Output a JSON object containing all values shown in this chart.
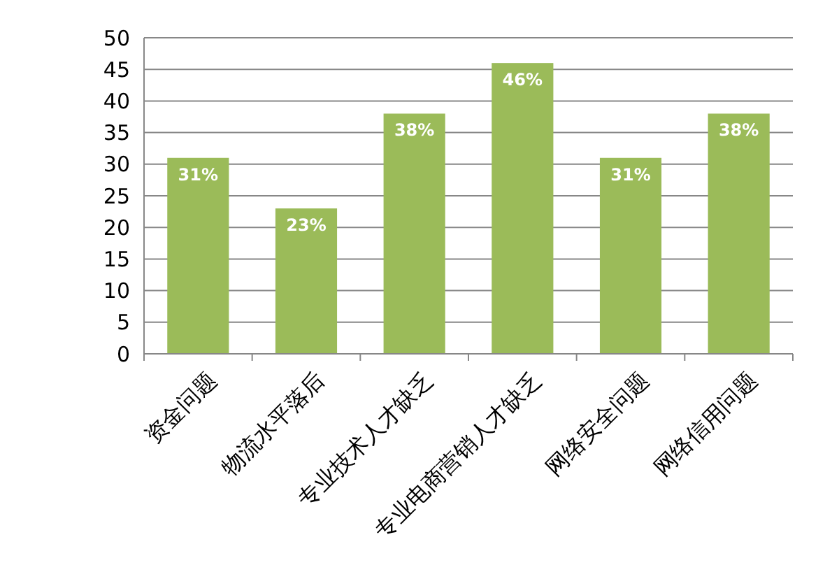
{
  "chart_data": {
    "type": "bar",
    "categories": [
      "资金问题",
      "物流水平落后",
      "专业技术人才缺乏",
      "专业电商营销人才缺乏",
      "网络安全问题",
      "网络信用问题"
    ],
    "values": [
      31,
      23,
      38,
      46,
      31,
      38
    ],
    "value_labels": [
      "31%",
      "23%",
      "38%",
      "46%",
      "31%",
      "38%"
    ],
    "color": "#9bbb59",
    "ylim": [
      0,
      50
    ],
    "yticks": [
      0,
      5,
      10,
      15,
      20,
      25,
      30,
      35,
      40,
      45,
      50
    ],
    "grid": "y"
  }
}
